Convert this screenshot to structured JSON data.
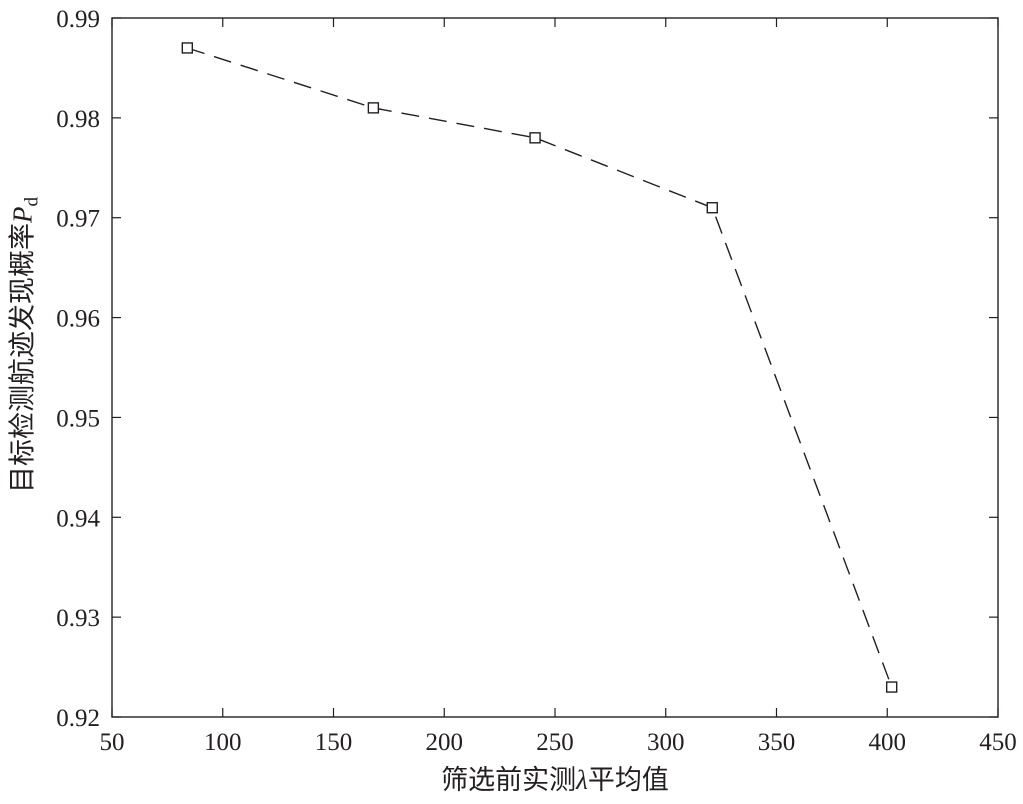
{
  "chart_data": {
    "type": "line",
    "title": "",
    "xlabel": {
      "prefix": "筛选前实测",
      "symbol": "λ",
      "suffix": "平均值"
    },
    "ylabel": {
      "prefix": "目标检测航迹发现概率",
      "symbol": "P",
      "subscript": "d"
    },
    "xlim": [
      50,
      450
    ],
    "ylim": [
      0.92,
      0.99
    ],
    "xticks": [
      50,
      100,
      150,
      200,
      250,
      300,
      350,
      400,
      450
    ],
    "xtick_labels": [
      "50",
      "100",
      "150",
      "200",
      "250",
      "300",
      "350",
      "400",
      "450"
    ],
    "yticks": [
      0.92,
      0.93,
      0.94,
      0.95,
      0.96,
      0.97,
      0.98,
      0.99
    ],
    "ytick_labels": [
      "0.92",
      "0.93",
      "0.94",
      "0.95",
      "0.96",
      "0.97",
      "0.98",
      "0.99"
    ],
    "grid": false,
    "series": [
      {
        "line_style": "dashed",
        "marker": "square",
        "color": "#231f20",
        "x": [
          84,
          168,
          241,
          321,
          402
        ],
        "y": [
          0.987,
          0.981,
          0.978,
          0.971,
          0.923
        ]
      }
    ]
  }
}
